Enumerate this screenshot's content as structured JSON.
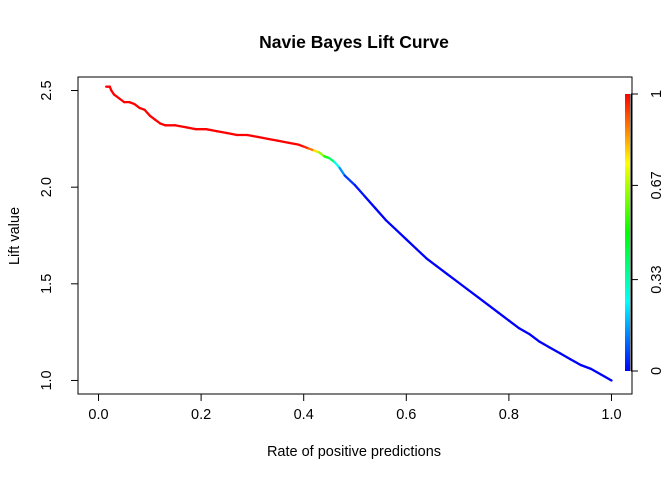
{
  "chart_data": {
    "type": "line",
    "title": "Navie Bayes Lift Curve",
    "xlabel": "Rate of positive predictions",
    "ylabel": "Lift value",
    "xlim": [
      -0.04,
      1.04
    ],
    "ylim": [
      0.93,
      2.57
    ],
    "grid": false,
    "x_ticks": [
      0.0,
      0.2,
      0.4,
      0.6,
      0.8,
      1.0
    ],
    "x_tick_labels": [
      "0.0",
      "0.2",
      "0.4",
      "0.6",
      "0.8",
      "1.0"
    ],
    "y_ticks": [
      1.0,
      1.5,
      2.0,
      2.5
    ],
    "y_tick_labels": [
      "1.0",
      "1.5",
      "2.0",
      "2.5"
    ],
    "colorbar": {
      "range": [
        0,
        1
      ],
      "ticks": [
        0,
        0.33,
        0.67,
        1
      ],
      "tick_labels": [
        "0",
        "0.33",
        "0.67",
        "1"
      ],
      "colors": [
        "#0000ff",
        "#00ffff",
        "#00ff00",
        "#ffff00",
        "#ff0000"
      ]
    },
    "series": [
      {
        "x": [
          0.015,
          0.022,
          0.025,
          0.03,
          0.04,
          0.05,
          0.06,
          0.07,
          0.08,
          0.09,
          0.1,
          0.11,
          0.12,
          0.13,
          0.15,
          0.17,
          0.19,
          0.21,
          0.23,
          0.25,
          0.27,
          0.29,
          0.31,
          0.33,
          0.35,
          0.37,
          0.39,
          0.4,
          0.41,
          0.42,
          0.43,
          0.44,
          0.45,
          0.46,
          0.47,
          0.48,
          0.5,
          0.52,
          0.54,
          0.56,
          0.58,
          0.6,
          0.62,
          0.64,
          0.66,
          0.68,
          0.7,
          0.72,
          0.74,
          0.76,
          0.78,
          0.8,
          0.82,
          0.84,
          0.86,
          0.88,
          0.9,
          0.92,
          0.94,
          0.96,
          0.98,
          1.0
        ],
        "y": [
          2.52,
          2.52,
          2.5,
          2.48,
          2.46,
          2.44,
          2.44,
          2.43,
          2.41,
          2.4,
          2.37,
          2.35,
          2.33,
          2.32,
          2.32,
          2.31,
          2.3,
          2.3,
          2.29,
          2.28,
          2.27,
          2.27,
          2.26,
          2.25,
          2.24,
          2.23,
          2.22,
          2.21,
          2.2,
          2.19,
          2.18,
          2.16,
          2.15,
          2.13,
          2.1,
          2.06,
          2.01,
          1.95,
          1.89,
          1.83,
          1.78,
          1.73,
          1.68,
          1.63,
          1.59,
          1.55,
          1.51,
          1.47,
          1.43,
          1.39,
          1.35,
          1.31,
          1.27,
          1.24,
          1.2,
          1.17,
          1.14,
          1.11,
          1.08,
          1.06,
          1.03,
          1.0
        ],
        "cutoff": [
          1.0,
          1.0,
          1.0,
          1.0,
          1.0,
          1.0,
          1.0,
          1.0,
          1.0,
          1.0,
          1.0,
          1.0,
          1.0,
          1.0,
          1.0,
          1.0,
          1.0,
          1.0,
          1.0,
          1.0,
          1.0,
          1.0,
          1.0,
          1.0,
          1.0,
          1.0,
          1.0,
          0.99,
          0.93,
          0.85,
          0.7,
          0.58,
          0.45,
          0.33,
          0.2,
          0.08,
          0.03,
          0.01,
          0.0,
          0.0,
          0.0,
          0.0,
          0.0,
          0.0,
          0.0,
          0.0,
          0.0,
          0.0,
          0.0,
          0.0,
          0.0,
          0.0,
          0.0,
          0.0,
          0.0,
          0.0,
          0.0,
          0.0,
          0.0,
          0.0,
          0.0,
          0.0
        ]
      }
    ]
  }
}
